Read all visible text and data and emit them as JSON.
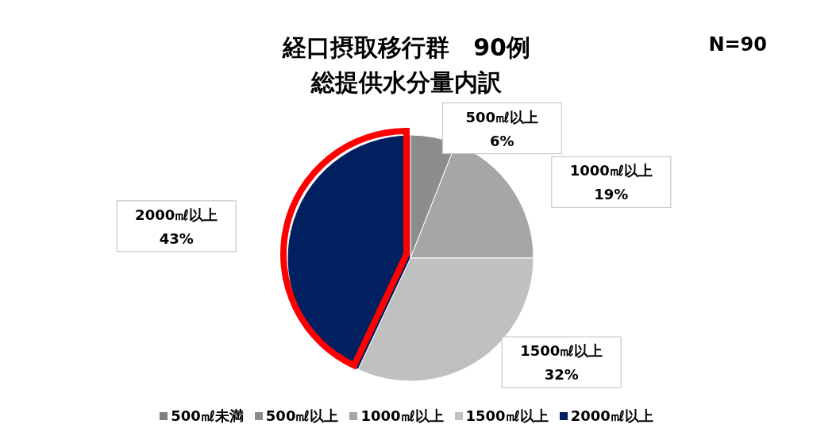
{
  "chart_data": {
    "type": "pie",
    "title": "経口摂取移行群　90例",
    "subtitle": "総提供水分量内訳",
    "annotations": [
      "N=90"
    ],
    "categories": [
      "500㎖未満",
      "500㎖以上",
      "1000㎖以上",
      "1500㎖以上",
      "2000㎖以上"
    ],
    "values": [
      0,
      6,
      19,
      32,
      43
    ],
    "colors": [
      "#7f7f7f",
      "#8c8c8c",
      "#a6a6a6",
      "#c0c0c0",
      "#002060"
    ],
    "value_labels": [
      null,
      "6%",
      "19%",
      "32%",
      "43%"
    ],
    "legend": "bottom"
  }
}
